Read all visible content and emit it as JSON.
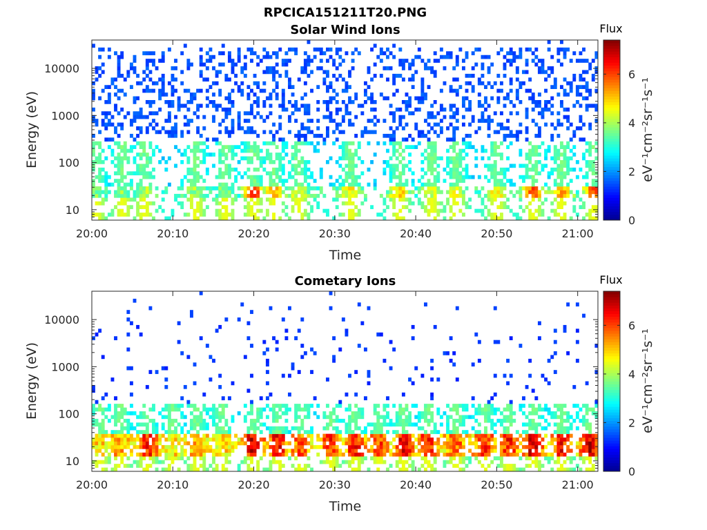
{
  "figure_title": "RPCICA151211T20.PNG",
  "colormap": [
    "#00008f",
    "#0000ff",
    "#0080ff",
    "#00ffff",
    "#80ff80",
    "#ffff00",
    "#ff8000",
    "#ff0000",
    "#800000"
  ],
  "chart_data": [
    {
      "type": "heatmap",
      "title": "Solar Wind Ions",
      "xlabel": "Time",
      "ylabel": "Energy (eV)",
      "x_ticks": [
        "20:00",
        "20:10",
        "20:20",
        "20:30",
        "20:40",
        "20:50",
        "21:00"
      ],
      "x_tick_minutes": [
        0,
        10,
        20,
        30,
        40,
        50,
        60
      ],
      "xlim_minutes": [
        0,
        62.5
      ],
      "y_ticks": [
        "10",
        "100",
        "1000",
        "10000"
      ],
      "y_tick_values": [
        10,
        100,
        1000,
        10000
      ],
      "ylim": [
        6,
        40000
      ],
      "yscale": "log",
      "colorbar": {
        "label": "Flux",
        "unit_label": "eV⁻¹cm⁻²sr⁻¹s⁻¹",
        "ticks": [
          0,
          2,
          4,
          6
        ],
        "range": [
          0,
          7.4
        ]
      },
      "background_flux": {
        "energy_range_eV": [
          300,
          30000
        ],
        "typical_flux": 1.5
      },
      "low_energy_band": {
        "energy_range_eV": [
          18,
          32
        ],
        "typical_flux": 3.4
      },
      "peak_events": [
        {
          "t": 0.5,
          "flux": 3.8
        },
        {
          "t": 3.8,
          "flux": 4.0
        },
        {
          "t": 6.5,
          "flux": 4.2
        },
        {
          "t": 12.8,
          "flux": 4.1
        },
        {
          "t": 16.5,
          "flux": 3.8
        },
        {
          "t": 20.0,
          "flux": 6.5
        },
        {
          "t": 22.5,
          "flux": 5.5
        },
        {
          "t": 25.5,
          "flux": 4.5
        },
        {
          "t": 32.0,
          "flux": 4.8
        },
        {
          "t": 38.0,
          "flux": 5.2
        },
        {
          "t": 42.0,
          "flux": 4.4
        },
        {
          "t": 45.0,
          "flux": 4.6
        },
        {
          "t": 50.0,
          "flux": 5.0
        },
        {
          "t": 54.5,
          "flux": 6.0
        },
        {
          "t": 58.0,
          "flux": 5.5
        },
        {
          "t": 62.0,
          "flux": 6.2
        }
      ]
    },
    {
      "type": "heatmap",
      "title": "Cometary Ions",
      "xlabel": "Time",
      "ylabel": "Energy (eV)",
      "x_ticks": [
        "20:00",
        "20:10",
        "20:20",
        "20:30",
        "20:40",
        "20:50",
        "21:00"
      ],
      "x_tick_minutes": [
        0,
        10,
        20,
        30,
        40,
        50,
        60
      ],
      "xlim_minutes": [
        0,
        62.5
      ],
      "y_ticks": [
        "10",
        "100",
        "1000",
        "10000"
      ],
      "y_tick_values": [
        10,
        100,
        1000,
        10000
      ],
      "ylim": [
        6,
        40000
      ],
      "yscale": "log",
      "colorbar": {
        "label": "Flux",
        "unit_label": "eV⁻¹cm⁻²sr⁻¹s⁻¹",
        "ticks": [
          0,
          2,
          4,
          6
        ],
        "range": [
          0,
          7.4
        ]
      },
      "background_flux": {
        "energy_range_eV": [
          150,
          10000
        ],
        "typical_flux": 1.3
      },
      "low_energy_band": {
        "energy_range_eV": [
          12,
          40
        ],
        "typical_flux": 4.8
      },
      "peak_events": [
        {
          "t": 1.0,
          "flux": 5.2
        },
        {
          "t": 3.5,
          "flux": 5.5
        },
        {
          "t": 6.8,
          "flux": 6.5
        },
        {
          "t": 10.0,
          "flux": 5.0
        },
        {
          "t": 13.0,
          "flux": 5.5
        },
        {
          "t": 16.0,
          "flux": 5.0
        },
        {
          "t": 20.0,
          "flux": 7.0
        },
        {
          "t": 23.0,
          "flux": 6.8
        },
        {
          "t": 25.8,
          "flux": 6.0
        },
        {
          "t": 29.5,
          "flux": 6.3
        },
        {
          "t": 32.5,
          "flux": 6.5
        },
        {
          "t": 35.5,
          "flux": 6.2
        },
        {
          "t": 38.5,
          "flux": 6.8
        },
        {
          "t": 41.5,
          "flux": 6.4
        },
        {
          "t": 45.0,
          "flux": 6.0
        },
        {
          "t": 48.5,
          "flux": 6.5
        },
        {
          "t": 51.5,
          "flux": 6.4
        },
        {
          "t": 54.5,
          "flux": 7.0
        },
        {
          "t": 58.0,
          "flux": 6.6
        },
        {
          "t": 61.5,
          "flux": 7.0
        }
      ]
    }
  ]
}
